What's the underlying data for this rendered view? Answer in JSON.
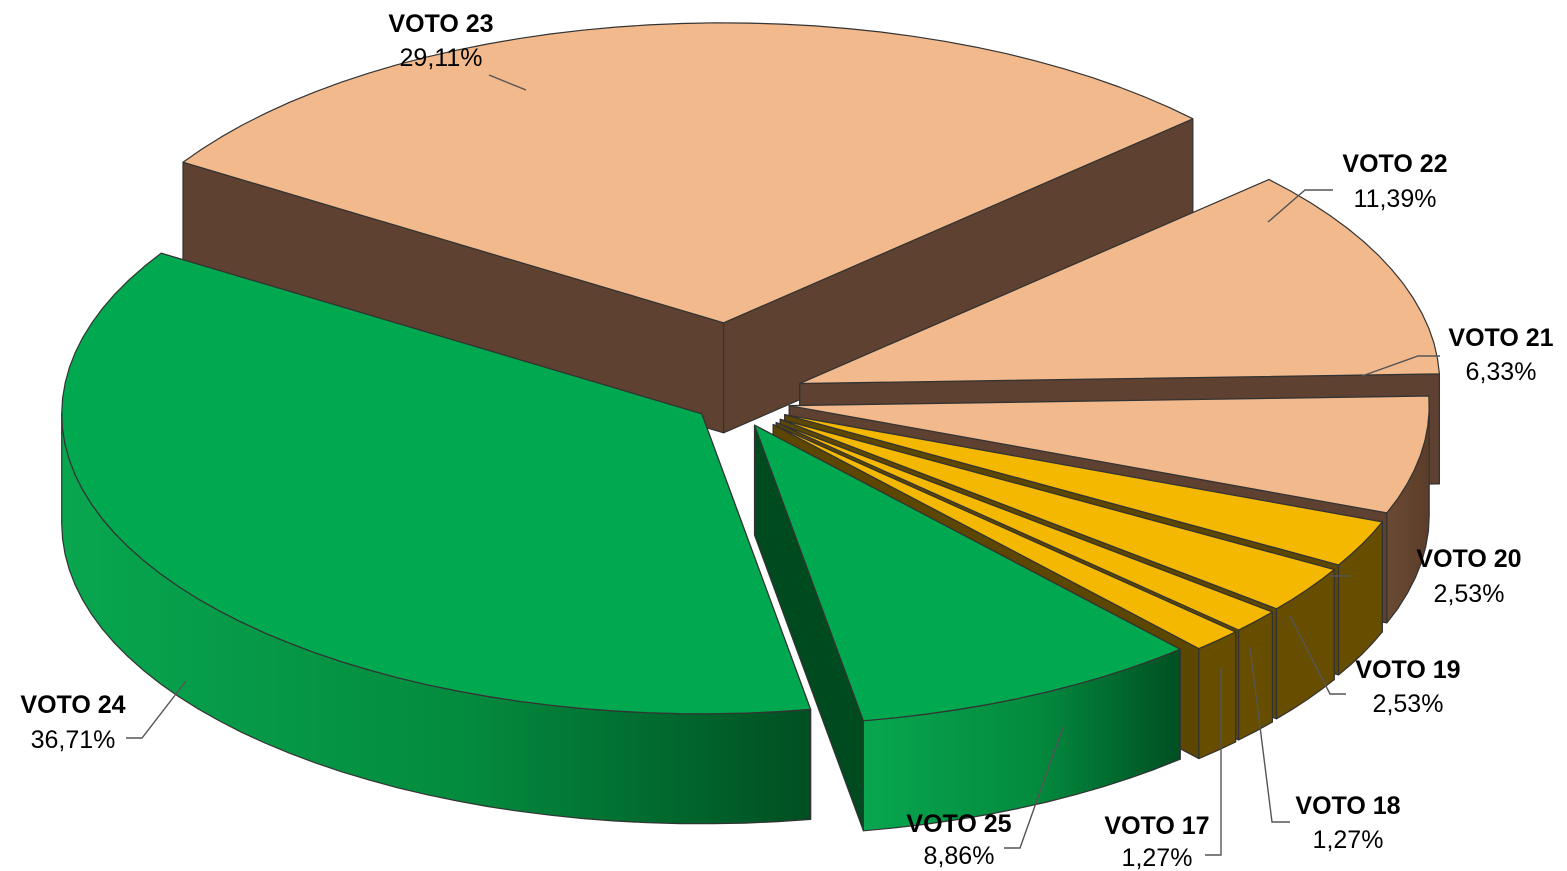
{
  "chart_data": {
    "type": "pie",
    "title": "",
    "style": "exploded-3d",
    "categories": [
      "VOTO 17",
      "VOTO 18",
      "VOTO 19",
      "VOTO 20",
      "VOTO 21",
      "VOTO 22",
      "VOTO 23",
      "VOTO 24",
      "VOTO 25"
    ],
    "values": [
      1.27,
      1.27,
      2.53,
      2.53,
      6.33,
      11.39,
      29.11,
      36.71,
      8.86
    ],
    "value_labels": [
      "1,27%",
      "1,27%",
      "2,53%",
      "2,53%",
      "6,33%",
      "11,39%",
      "29,11%",
      "36,71%",
      "8,86%"
    ],
    "colors": {
      "VOTO 17": "#f5b800",
      "VOTO 18": "#f5b800",
      "VOTO 19": "#f5b800",
      "VOTO 20": "#f5b800",
      "VOTO 21": "#f2b98c",
      "VOTO 22": "#f2b98c",
      "VOTO 23": "#f2b98c",
      "VOTO 24": "#00a84f",
      "VOTO 25": "#00a84f"
    },
    "legend": "none",
    "labels": "outside with leader lines"
  }
}
